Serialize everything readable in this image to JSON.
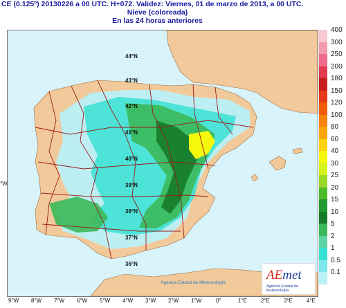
{
  "header": {
    "line1": "CE (0.125º) 20130226 a 00 UTC.  H+072. Validez: Viernes, 01 de marzo de 2013,  a  00 UTC.",
    "line2": "Nieve (coloreada)",
    "line3": "En las 24 horas anteriores"
  },
  "map": {
    "lat_labels": [
      "44°N",
      "43°N",
      "42°N",
      "41°N",
      "40°N",
      "39°N",
      "38°N",
      "37°N",
      "36°N"
    ],
    "lon_labels": [
      "9°W",
      "8°W",
      "7°W",
      "6°W",
      "5°W",
      "4°W",
      "3°W",
      "2°W",
      "1°W",
      "0°",
      "1°E",
      "2°E",
      "3°E",
      "4°E"
    ],
    "side_label": "°W",
    "credit": "Agencia Estatal de Meteorología",
    "colors": {
      "sea": "#d9f3fb",
      "land": "#f2c99a",
      "border": "#9b1a1a"
    }
  },
  "legend": {
    "levels": [
      {
        "label": "400",
        "color": "#f8c9d0"
      },
      {
        "label": "300",
        "color": "#f49bb0"
      },
      {
        "label": "250",
        "color": "#ef6b8a"
      },
      {
        "label": "200",
        "color": "#e03c52"
      },
      {
        "label": "180",
        "color": "#c81e1e"
      },
      {
        "label": "150",
        "color": "#e53a16"
      },
      {
        "label": "120",
        "color": "#f25c0a"
      },
      {
        "label": "100",
        "color": "#f7830a"
      },
      {
        "label": "80",
        "color": "#fba40a"
      },
      {
        "label": "60",
        "color": "#fdd20a"
      },
      {
        "label": "40",
        "color": "#f6f80a"
      },
      {
        "label": "30",
        "color": "#d6f21c"
      },
      {
        "label": "25",
        "color": "#9ad825"
      },
      {
        "label": "20",
        "color": "#4cbc2a"
      },
      {
        "label": "15",
        "color": "#1f9a2f"
      },
      {
        "label": "10",
        "color": "#157a2a"
      },
      {
        "label": "5",
        "color": "#3bb85a"
      },
      {
        "label": "2",
        "color": "#5cd4a5"
      },
      {
        "label": "1",
        "color": "#39e0d4"
      },
      {
        "label": "0.5",
        "color": "#7fe8ef"
      },
      {
        "label": "0.1",
        "color": "#b9f0f6"
      }
    ]
  },
  "logo": {
    "word_cap": "AE",
    "word_rest": "met",
    "subtitle": "Agencia Estatal de Meteorología"
  }
}
